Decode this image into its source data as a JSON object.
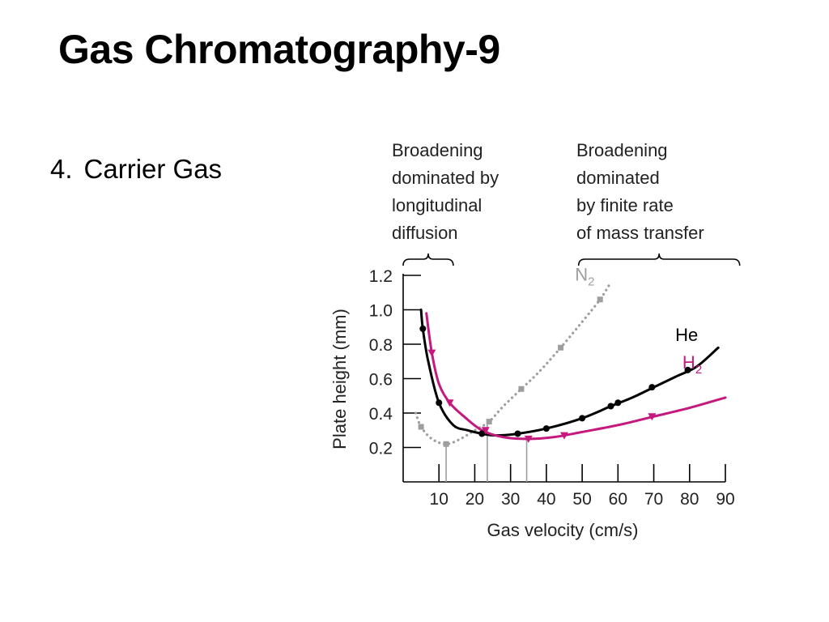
{
  "slide": {
    "title": "Gas Chromatography-9",
    "bullet_number": "4.",
    "bullet_text": "Carrier Gas"
  },
  "chart_data": {
    "type": "line",
    "xlabel": "Gas velocity (cm/s)",
    "ylabel": "Plate height (mm)",
    "xlim": [
      0,
      90
    ],
    "ylim": [
      0,
      1.2
    ],
    "x_ticks": [
      10,
      20,
      30,
      40,
      50,
      60,
      70,
      80,
      90
    ],
    "y_ticks": [
      0.2,
      0.4,
      0.6,
      0.8,
      1.0,
      1.2
    ],
    "x_tick_labels": [
      "10",
      "20",
      "30",
      "40",
      "50",
      "60",
      "70",
      "80",
      "90"
    ],
    "y_tick_labels": [
      "0.2",
      "0.4",
      "0.6",
      "0.8",
      "1.0",
      "1.2"
    ],
    "grid": false,
    "annotations": [
      {
        "id": "left",
        "lines": [
          "Broadening",
          "dominated by",
          "longitudinal",
          "diffusion"
        ],
        "x_range": [
          0,
          14
        ]
      },
      {
        "id": "right",
        "lines": [
          "Broadening",
          "dominated",
          "by finite rate",
          "of mass transfer"
        ],
        "x_range": [
          49,
          94
        ]
      }
    ],
    "series": [
      {
        "name": "N",
        "subscript": "2",
        "color": "#9e9e9e",
        "style": "dotted",
        "marker": "square",
        "curve": [
          [
            3.5,
            0.4
          ],
          [
            5,
            0.32
          ],
          [
            8,
            0.25
          ],
          [
            12,
            0.22
          ],
          [
            16,
            0.25
          ],
          [
            20,
            0.3
          ],
          [
            24,
            0.35
          ],
          [
            28,
            0.44
          ],
          [
            33,
            0.54
          ],
          [
            38,
            0.64
          ],
          [
            44,
            0.78
          ],
          [
            50,
            0.93
          ],
          [
            55,
            1.06
          ],
          [
            58,
            1.16
          ]
        ],
        "markers": [
          [
            5,
            0.32
          ],
          [
            12,
            0.22
          ],
          [
            24,
            0.35
          ],
          [
            33,
            0.54
          ],
          [
            44,
            0.78
          ],
          [
            55,
            1.06
          ]
        ],
        "label_at": [
          48,
          1.17
        ]
      },
      {
        "name": "He",
        "color": "#000000",
        "style": "solid",
        "marker": "circle",
        "curve": [
          [
            5,
            1.0
          ],
          [
            5.5,
            0.89
          ],
          [
            7,
            0.7
          ],
          [
            10,
            0.46
          ],
          [
            14,
            0.33
          ],
          [
            18,
            0.3
          ],
          [
            22,
            0.28
          ],
          [
            26,
            0.27
          ],
          [
            32,
            0.28
          ],
          [
            40,
            0.31
          ],
          [
            50,
            0.37
          ],
          [
            58,
            0.44
          ],
          [
            64,
            0.49
          ],
          [
            70,
            0.55
          ],
          [
            76,
            0.61
          ],
          [
            82,
            0.67
          ],
          [
            88,
            0.78
          ]
        ],
        "markers": [
          [
            5.5,
            0.89
          ],
          [
            10,
            0.46
          ],
          [
            22,
            0.28
          ],
          [
            32,
            0.28
          ],
          [
            40,
            0.31
          ],
          [
            50,
            0.37
          ],
          [
            58,
            0.44
          ],
          [
            60,
            0.46
          ],
          [
            69.5,
            0.55
          ],
          [
            79.5,
            0.65
          ]
        ],
        "label_at": [
          76,
          0.82
        ]
      },
      {
        "name": "H",
        "subscript": "2",
        "color": "#c5197d",
        "style": "solid",
        "marker": "triangle",
        "curve": [
          [
            6.5,
            0.98
          ],
          [
            8,
            0.75
          ],
          [
            10,
            0.57
          ],
          [
            13,
            0.46
          ],
          [
            17,
            0.38
          ],
          [
            22,
            0.3
          ],
          [
            28,
            0.26
          ],
          [
            35,
            0.25
          ],
          [
            42,
            0.26
          ],
          [
            50,
            0.29
          ],
          [
            60,
            0.33
          ],
          [
            70,
            0.38
          ],
          [
            80,
            0.43
          ],
          [
            90,
            0.49
          ]
        ],
        "markers": [
          [
            8,
            0.75
          ],
          [
            13,
            0.46
          ],
          [
            23,
            0.3
          ],
          [
            35,
            0.25
          ],
          [
            45,
            0.27
          ],
          [
            69.5,
            0.38
          ]
        ],
        "label_at": [
          78,
          0.66
        ]
      }
    ],
    "optimum_markers": [
      {
        "x": 12,
        "y": 0.22,
        "color": "#9e9e9e"
      },
      {
        "x": 23.5,
        "y": 0.35,
        "color": "#9e9e9e"
      },
      {
        "x": 34.5,
        "y": 0.25,
        "color": "#9e9e9e"
      }
    ]
  }
}
